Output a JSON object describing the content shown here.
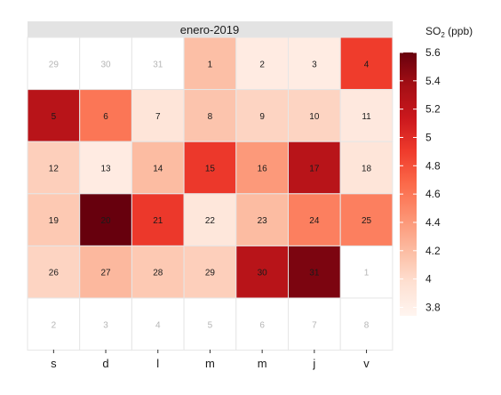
{
  "chart_data": {
    "type": "heatmap",
    "title": "enero-2019",
    "weekday_labels": [
      "s",
      "d",
      "l",
      "m",
      "m",
      "j",
      "v"
    ],
    "legend": {
      "title_main": "SO",
      "title_sub": "2",
      "title_unit": " (ppb)",
      "min": 3.74,
      "max": 5.6,
      "ticks": [
        3.8,
        4,
        4.2,
        4.4,
        4.6,
        4.8,
        5,
        5.2,
        5.4,
        5.6
      ],
      "tick_labels": [
        "3.8",
        "4",
        "4.2",
        "4.4",
        "4.6",
        "4.8",
        "5",
        "5.2",
        "5.4",
        "5.6"
      ]
    },
    "color_scale": [
      "#fff5f0",
      "#fee0d2",
      "#fcbba1",
      "#fc9272",
      "#fb6a4a",
      "#ef3b2c",
      "#cb181d",
      "#a50f15",
      "#67000d"
    ],
    "filler_cells": [
      {
        "row": 0,
        "col": 0,
        "label": "29"
      },
      {
        "row": 0,
        "col": 1,
        "label": "30"
      },
      {
        "row": 0,
        "col": 2,
        "label": "31"
      },
      {
        "row": 4,
        "col": 6,
        "label": "1"
      },
      {
        "row": 5,
        "col": 0,
        "label": "2"
      },
      {
        "row": 5,
        "col": 1,
        "label": "3"
      },
      {
        "row": 5,
        "col": 2,
        "label": "4"
      },
      {
        "row": 5,
        "col": 3,
        "label": "5"
      },
      {
        "row": 5,
        "col": 4,
        "label": "6"
      },
      {
        "row": 5,
        "col": 5,
        "label": "7"
      },
      {
        "row": 5,
        "col": 6,
        "label": "8"
      }
    ],
    "days": [
      {
        "day": 1,
        "row": 0,
        "col": 3,
        "value": 4.18
      },
      {
        "day": 2,
        "row": 0,
        "col": 4,
        "value": 3.85
      },
      {
        "day": 3,
        "row": 0,
        "col": 5,
        "value": 3.84
      },
      {
        "day": 4,
        "row": 0,
        "col": 6,
        "value": 4.9
      },
      {
        "day": 5,
        "row": 1,
        "col": 0,
        "value": 5.25
      },
      {
        "day": 6,
        "row": 1,
        "col": 1,
        "value": 4.6
      },
      {
        "day": 7,
        "row": 1,
        "col": 2,
        "value": 3.92
      },
      {
        "day": 8,
        "row": 1,
        "col": 3,
        "value": 4.15
      },
      {
        "day": 9,
        "row": 1,
        "col": 4,
        "value": 4.05
      },
      {
        "day": 10,
        "row": 1,
        "col": 5,
        "value": 4.05
      },
      {
        "day": 11,
        "row": 1,
        "col": 6,
        "value": 3.88
      },
      {
        "day": 12,
        "row": 2,
        "col": 0,
        "value": 4.08
      },
      {
        "day": 13,
        "row": 2,
        "col": 1,
        "value": 3.85
      },
      {
        "day": 14,
        "row": 2,
        "col": 2,
        "value": 4.2
      },
      {
        "day": 15,
        "row": 2,
        "col": 3,
        "value": 4.92
      },
      {
        "day": 16,
        "row": 2,
        "col": 4,
        "value": 4.4
      },
      {
        "day": 17,
        "row": 2,
        "col": 5,
        "value": 5.25
      },
      {
        "day": 18,
        "row": 2,
        "col": 6,
        "value": 3.92
      },
      {
        "day": 19,
        "row": 3,
        "col": 0,
        "value": 4.12
      },
      {
        "day": 20,
        "row": 3,
        "col": 1,
        "value": 5.6
      },
      {
        "day": 21,
        "row": 3,
        "col": 2,
        "value": 4.92
      },
      {
        "day": 22,
        "row": 3,
        "col": 3,
        "value": 3.9
      },
      {
        "day": 23,
        "row": 3,
        "col": 4,
        "value": 4.2
      },
      {
        "day": 24,
        "row": 3,
        "col": 5,
        "value": 4.55
      },
      {
        "day": 25,
        "row": 3,
        "col": 6,
        "value": 4.55
      },
      {
        "day": 26,
        "row": 4,
        "col": 0,
        "value": 4.05
      },
      {
        "day": 27,
        "row": 4,
        "col": 1,
        "value": 4.22
      },
      {
        "day": 28,
        "row": 4,
        "col": 2,
        "value": 4.12
      },
      {
        "day": 29,
        "row": 4,
        "col": 3,
        "value": 4.08
      },
      {
        "day": 30,
        "row": 4,
        "col": 4,
        "value": 5.25
      },
      {
        "day": 31,
        "row": 4,
        "col": 5,
        "value": 5.52
      }
    ]
  }
}
